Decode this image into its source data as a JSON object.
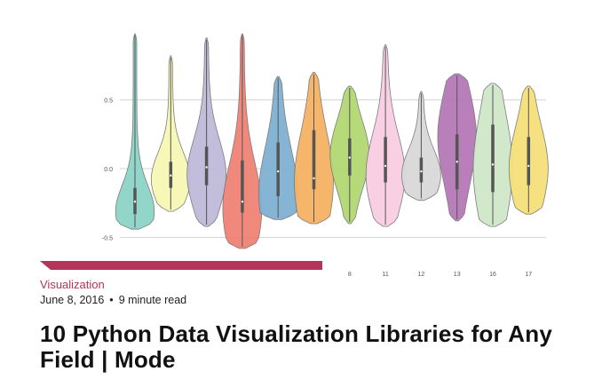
{
  "article": {
    "category": "Visualization",
    "date": "June 8, 2016",
    "separator": "•",
    "read_time": "9 minute read",
    "title": "10 Python Data Visualization Libraries for Any Field | Mode"
  },
  "colors": {
    "accent": "#b5345b"
  },
  "chart_data": {
    "type": "violin",
    "ylim": [
      -0.6,
      1.0
    ],
    "yticks": [
      "0.5",
      "0.0",
      "-0.5"
    ],
    "ytick_values": [
      0.5,
      0.0,
      -0.5
    ],
    "grid": true,
    "categories": [
      "",
      "",
      "",
      "",
      "",
      "",
      "8",
      "11",
      "12",
      "13",
      "16",
      "17"
    ],
    "series": [
      {
        "color": "#8dd3c7",
        "min": -0.44,
        "max": 0.98,
        "median": -0.24,
        "q1": -0.33,
        "q3": -0.14,
        "mode": -0.32
      },
      {
        "color": "#f7f7b4",
        "min": -0.31,
        "max": 0.82,
        "median": -0.05,
        "q1": -0.14,
        "q3": 0.05,
        "mode": -0.08
      },
      {
        "color": "#bebada",
        "min": -0.42,
        "max": 0.95,
        "median": 0.01,
        "q1": -0.12,
        "q3": 0.16,
        "mode": -0.05
      },
      {
        "color": "#f08274",
        "min": -0.58,
        "max": 0.98,
        "median": -0.24,
        "q1": -0.32,
        "q3": 0.06,
        "mode": -0.3
      },
      {
        "color": "#80b1d3",
        "min": -0.37,
        "max": 0.67,
        "median": -0.02,
        "q1": -0.2,
        "q3": 0.19,
        "mode": -0.2
      },
      {
        "color": "#f5b264",
        "min": -0.4,
        "max": 0.7,
        "median": -0.07,
        "q1": -0.15,
        "q3": 0.28,
        "mode": -0.1
      },
      {
        "color": "#b3d872",
        "min": -0.4,
        "max": 0.6,
        "median": 0.08,
        "q1": -0.05,
        "q3": 0.22,
        "mode": 0.1
      },
      {
        "color": "#f9cde2",
        "min": -0.42,
        "max": 0.9,
        "median": 0.02,
        "q1": -0.1,
        "q3": 0.23,
        "mode": -0.05
      },
      {
        "color": "#d9d9d9",
        "min": -0.23,
        "max": 0.56,
        "median": -0.02,
        "q1": -0.1,
        "q3": 0.08,
        "mode": -0.05
      },
      {
        "color": "#b679b8",
        "min": -0.38,
        "max": 0.69,
        "median": 0.05,
        "q1": -0.15,
        "q3": 0.25,
        "mode": 0.25
      },
      {
        "color": "#cfe8c8",
        "min": -0.42,
        "max": 0.62,
        "median": 0.03,
        "q1": -0.17,
        "q3": 0.32,
        "mode": 0.0
      },
      {
        "color": "#f5e07a",
        "min": -0.33,
        "max": 0.6,
        "median": 0.02,
        "q1": -0.12,
        "q3": 0.23,
        "mode": 0.0
      }
    ]
  }
}
